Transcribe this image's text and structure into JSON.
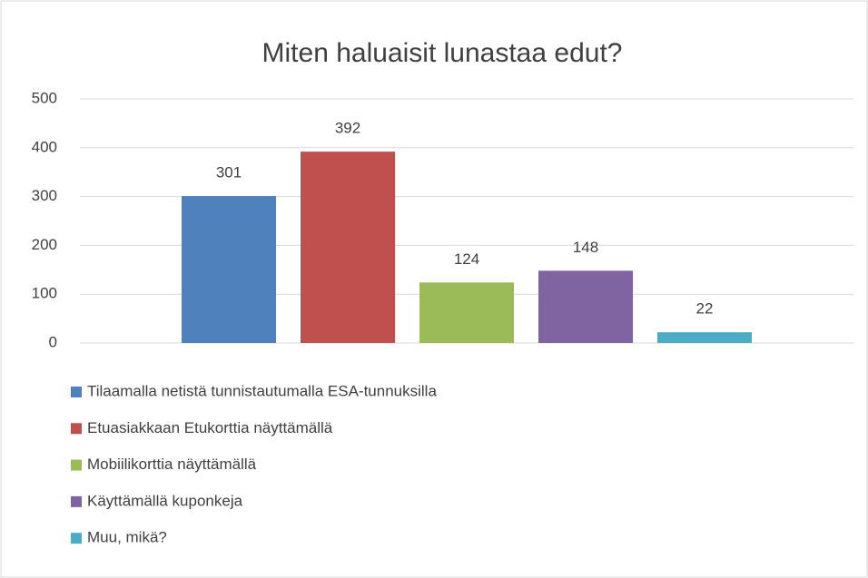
{
  "chart_data": {
    "type": "bar",
    "title": "Miten haluaisit lunastaa edut?",
    "categories": [
      null
    ],
    "series": [
      {
        "name": "Tilaamalla netistä tunnistautumalla ESA-tunnuksilla",
        "color": "#4f81bd",
        "values": [
          301
        ]
      },
      {
        "name": "Etuasiakkaan Etukorttia näyttämällä",
        "color": "#c0504d",
        "values": [
          392
        ]
      },
      {
        "name": "Mobiilikorttia näyttämällä",
        "color": "#9bbb59",
        "values": [
          124
        ]
      },
      {
        "name": "Käyttämällä kuponkeja",
        "color": "#8064a2",
        "values": [
          148
        ]
      },
      {
        "name": "Muu, mikä?",
        "color": "#4bacc6",
        "values": [
          22
        ]
      }
    ],
    "ylim": [
      0,
      500
    ],
    "yticks": [
      0,
      100,
      200,
      300,
      400,
      500
    ],
    "grid": true,
    "legend": "bottom"
  }
}
